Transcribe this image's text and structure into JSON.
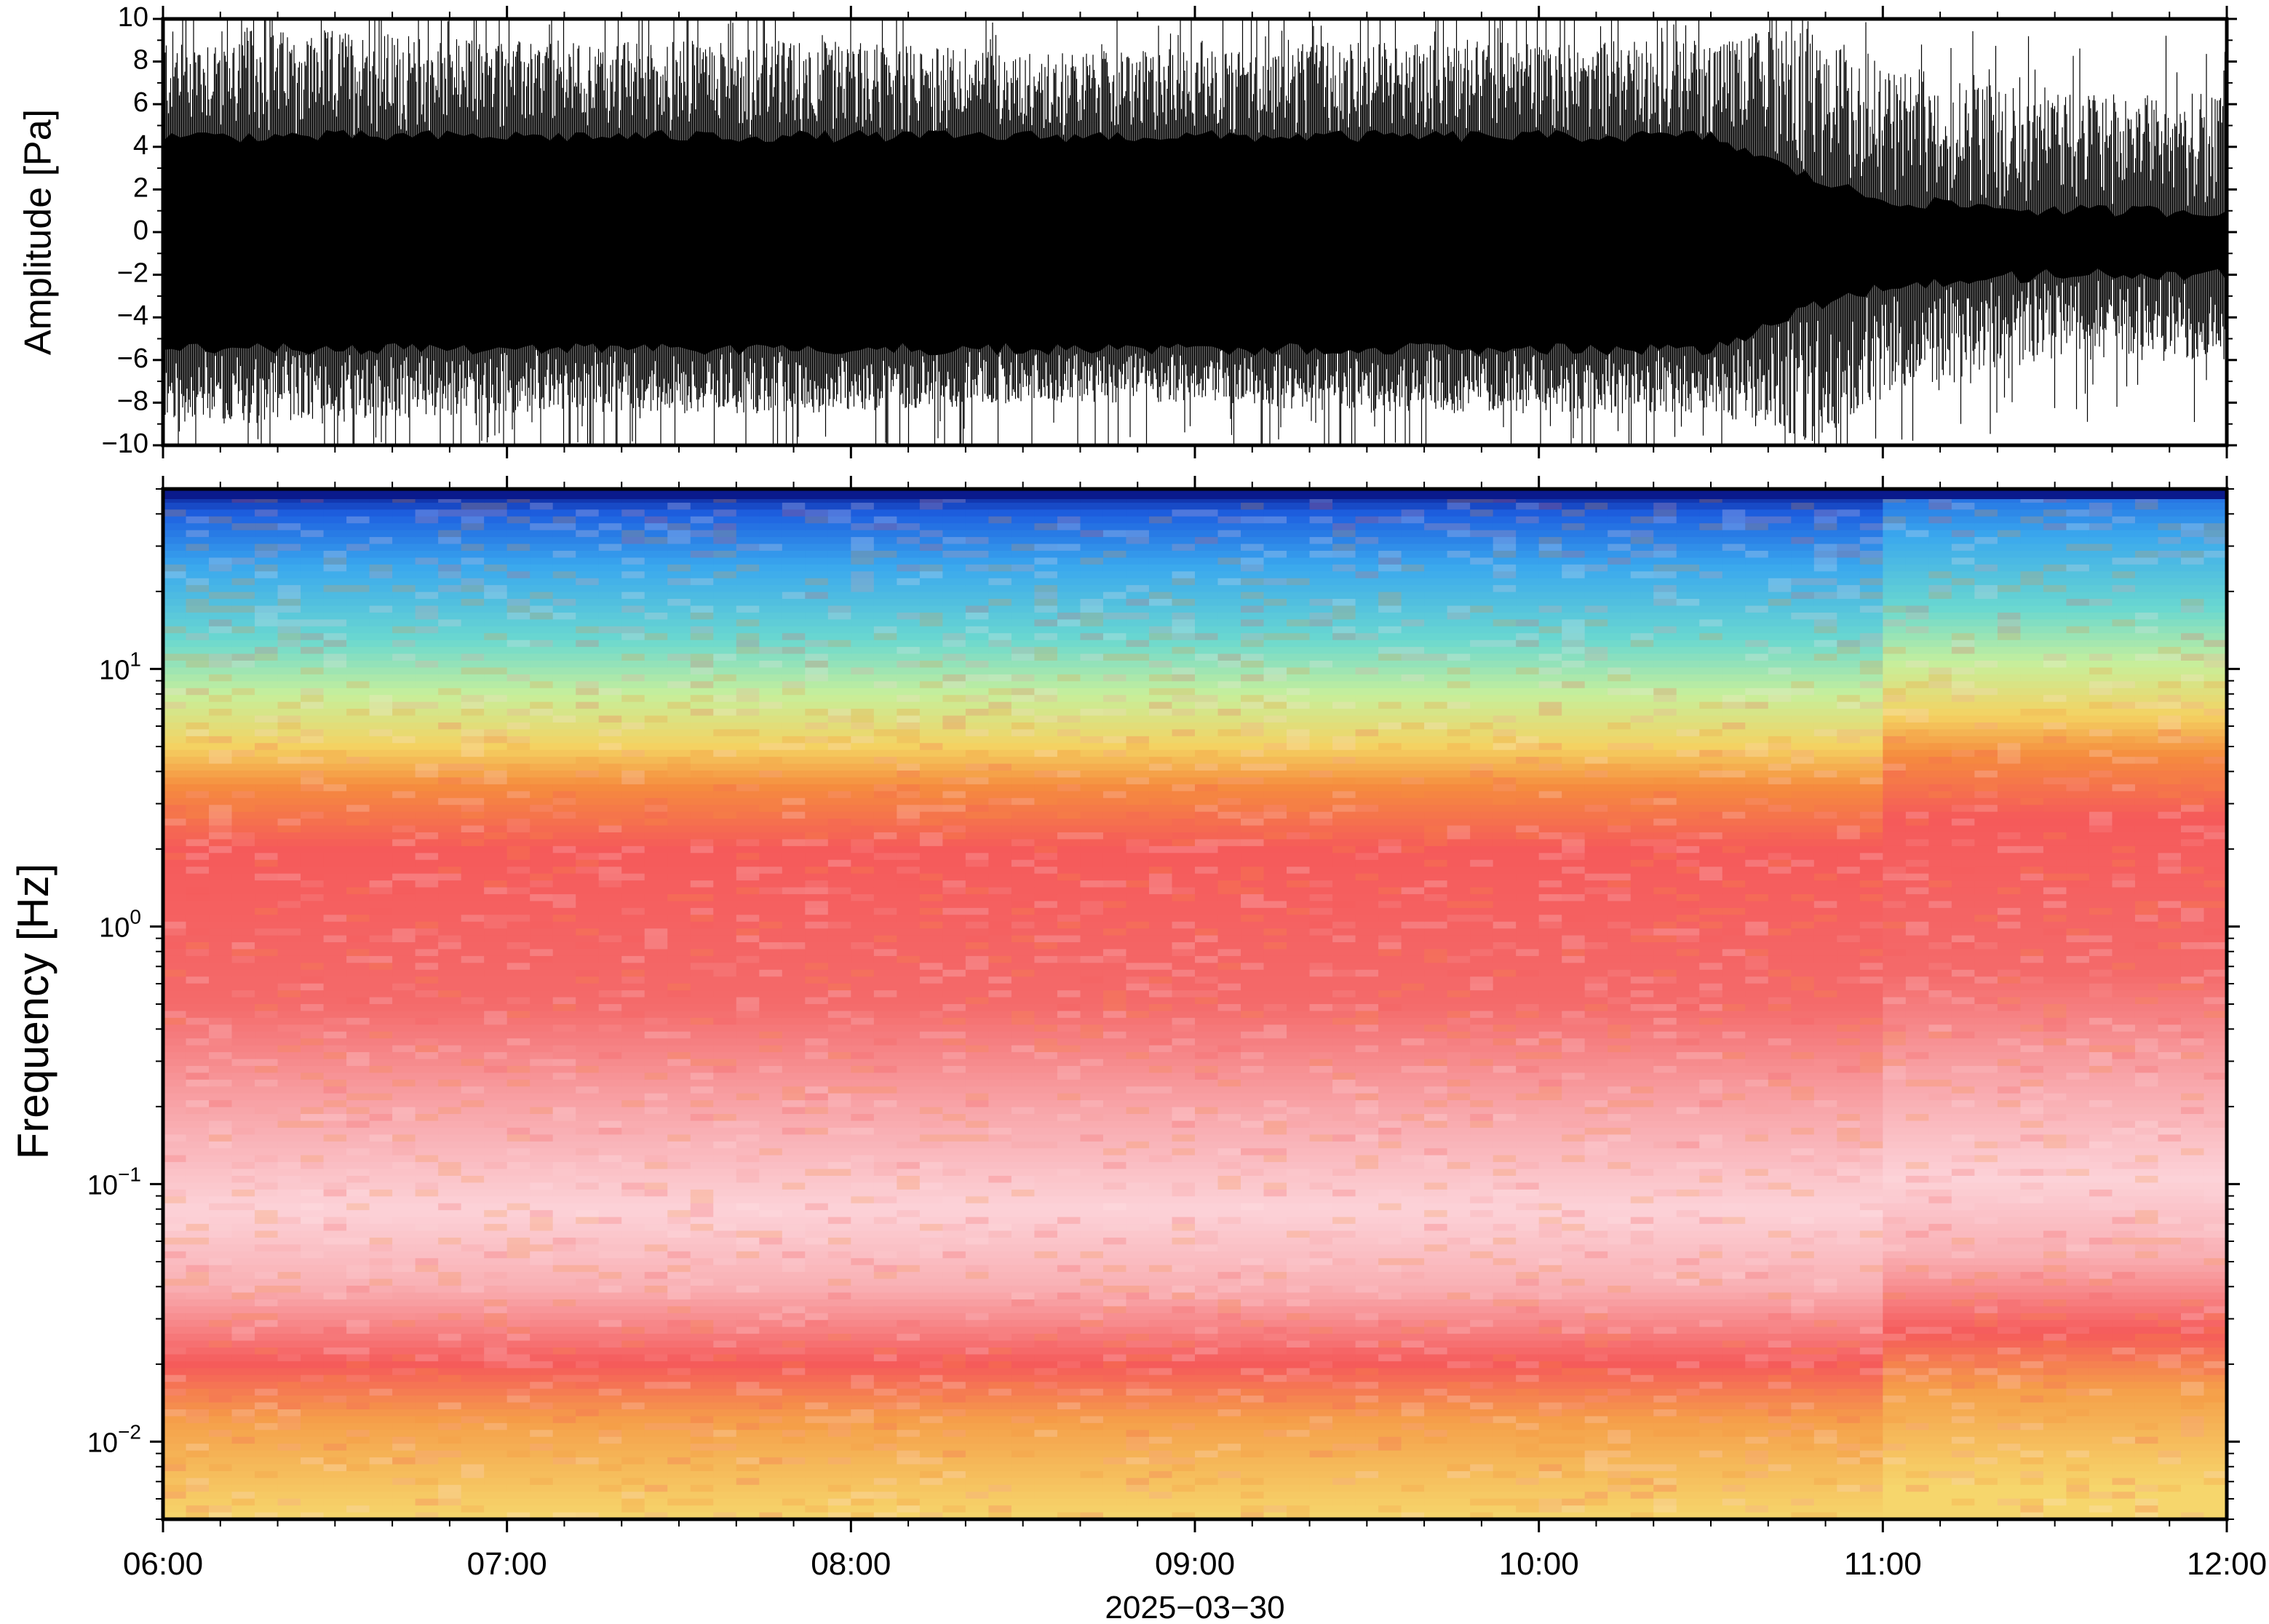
{
  "chart_data": [
    {
      "type": "line",
      "panel": "waveform",
      "ylabel": "Amplitude [Pa]",
      "ylim": [
        -10,
        10
      ],
      "yticks": [
        10,
        8,
        6,
        4,
        2,
        0,
        -2,
        -4,
        -6,
        -8,
        -10
      ],
      "ytick_labels": [
        "10",
        "8",
        "6",
        "4",
        "2",
        "0",
        "−2",
        "−4",
        "−6",
        "−8",
        "−10"
      ],
      "xlim": [
        "06:00",
        "12:00"
      ],
      "envelope": {
        "time_hours": [
          6.0,
          6.5,
          7.0,
          7.5,
          8.0,
          8.5,
          9.0,
          9.5,
          10.0,
          10.5,
          10.8,
          11.0,
          11.5,
          12.0
        ],
        "upper": [
          9.5,
          9.5,
          9.0,
          9.0,
          9.0,
          8.5,
          8.5,
          9.0,
          9.0,
          9.0,
          10.0,
          8.0,
          6.5,
          6.5
        ],
        "lower": [
          -9.0,
          -9.0,
          -8.5,
          -8.5,
          -8.5,
          -8.0,
          -8.0,
          -8.5,
          -8.5,
          -8.5,
          -10.0,
          -7.5,
          -6.0,
          -6.0
        ],
        "dense_upper": [
          4.5,
          4.5,
          4.5,
          4.5,
          4.5,
          4.5,
          4.5,
          4.5,
          4.5,
          4.5,
          2.5,
          1.5,
          1.0,
          1.0
        ],
        "dense_lower": [
          -5.5,
          -5.5,
          -5.5,
          -5.5,
          -5.5,
          -5.5,
          -5.5,
          -5.5,
          -5.5,
          -5.5,
          -3.5,
          -2.5,
          -2.0,
          -2.0
        ]
      }
    },
    {
      "type": "heatmap",
      "panel": "spectrogram",
      "ylabel": "Frequency [Hz]",
      "yscale": "log",
      "ylim": [
        0.005,
        50
      ],
      "yticks": [
        10,
        1,
        0.1,
        0.01
      ],
      "ytick_labels": [
        {
          "base": "10",
          "exp": "1"
        },
        {
          "base": "10",
          "exp": "0"
        },
        {
          "base": "10",
          "exp": "−1"
        },
        {
          "base": "10",
          "exp": "−2"
        }
      ],
      "xlim": [
        "06:00",
        "12:00"
      ],
      "colormap": [
        "#0a1a8c",
        "#1f6fe6",
        "#40b8f0",
        "#6fe0c8",
        "#c8f0a0",
        "#f5d060",
        "#f5903c",
        "#f55a5a",
        "#f89a9a",
        "#fcd6dc",
        "#ffe6ea"
      ],
      "frequency_bands": [
        {
          "hz": 50,
          "color": "#0a1a8c"
        },
        {
          "hz": 40,
          "color": "#1e60e0"
        },
        {
          "hz": 25,
          "color": "#3aa8ee"
        },
        {
          "hz": 13,
          "color": "#6ad8d0"
        },
        {
          "hz": 8,
          "color": "#c6ef9c"
        },
        {
          "hz": 5,
          "color": "#f4d262"
        },
        {
          "hz": 3.5,
          "color": "#f58c3e"
        },
        {
          "hz": 2,
          "color": "#f55a5a"
        },
        {
          "hz": 0.5,
          "color": "#f46a6a"
        },
        {
          "hz": 0.2,
          "color": "#f8a4a8"
        },
        {
          "hz": 0.08,
          "color": "#fcd2d8"
        },
        {
          "hz": 0.04,
          "color": "#f9b0b4"
        },
        {
          "hz": 0.02,
          "color": "#f55a5a"
        },
        {
          "hz": 0.012,
          "color": "#f5a04a"
        },
        {
          "hz": 0.005,
          "color": "#f6d66c"
        }
      ]
    }
  ],
  "x_axis": {
    "ticks_hours": [
      6,
      7,
      8,
      9,
      10,
      11,
      12
    ],
    "tick_labels": [
      "06:00",
      "07:00",
      "08:00",
      "09:00",
      "10:00",
      "11:00",
      "12:00"
    ],
    "date_label": "2025−03−30"
  }
}
